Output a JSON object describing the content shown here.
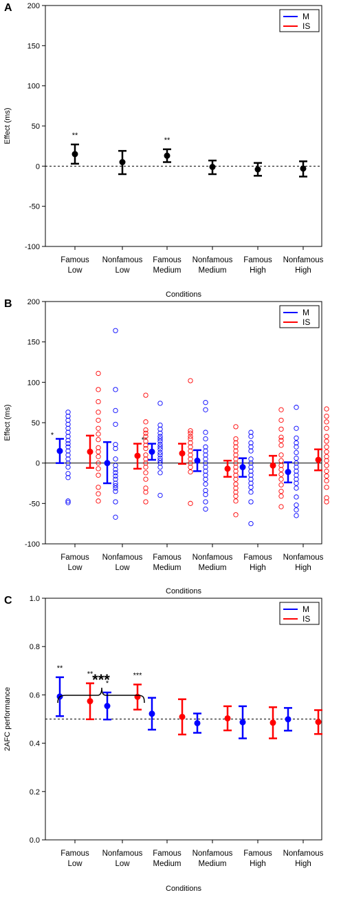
{
  "figure": {
    "chart_data": [
      {
        "panel": "A",
        "type": "scatter",
        "xlabel": "Conditions",
        "ylabel": "Effect (ms)",
        "ylim": [
          -100,
          200
        ],
        "yticks": [
          -100,
          -50,
          0,
          50,
          100,
          150,
          200
        ],
        "categories": [
          "Famous\nLow",
          "Nonfamous\nLow",
          "Famous\nMedium",
          "Nonfamous\nMedium",
          "Famous\nHigh",
          "Nonfamous\nHigh"
        ],
        "reference_line": 0,
        "legend": {
          "placement": "top-right",
          "entries": [
            {
              "label": "M",
              "color": "#0000ff"
            },
            {
              "label": "IS",
              "color": "#ff0000"
            }
          ]
        },
        "series": [
          {
            "color": "#000000",
            "means": [
              15,
              5,
              13,
              -1,
              -4,
              -3
            ],
            "lower": [
              3,
              -10,
              5,
              -10,
              -12,
              -13
            ],
            "upper": [
              27,
              19,
              21,
              7,
              4,
              6
            ],
            "sig": [
              "**",
              "",
              "**",
              "",
              "",
              ""
            ]
          }
        ]
      },
      {
        "panel": "B",
        "type": "scatter",
        "xlabel": "Conditions",
        "ylabel": "Effect (ms)",
        "ylim": [
          -100,
          200
        ],
        "yticks": [
          -100,
          -50,
          0,
          50,
          100,
          150,
          200
        ],
        "categories": [
          "Famous\nLow",
          "Nonfamous\nLow",
          "Famous\nMedium",
          "Nonfamous\nMedium",
          "Famous\nHigh",
          "Nonfamous\nHigh"
        ],
        "reference_line": 0,
        "legend": {
          "placement": "top-right",
          "entries": [
            {
              "label": "M",
              "color": "#0000ff"
            },
            {
              "label": "IS",
              "color": "#ff0000"
            }
          ]
        },
        "series": [
          {
            "name": "M",
            "color": "#0000ff",
            "means": [
              15,
              0,
              14,
              3,
              -5,
              -11
            ],
            "lower": [
              0,
              -25,
              4,
              -10,
              -17,
              -24
            ],
            "upper": [
              30,
              26,
              24,
              16,
              6,
              1
            ],
            "sig": [
              "*",
              "",
              "**",
              "",
              "",
              ""
            ],
            "points": [
              [
                63,
                58,
                53,
                48,
                43,
                38,
                33,
                28,
                24,
                20,
                15,
                10,
                5,
                0,
                -5,
                -13,
                -18,
                -47,
                -49
              ],
              [
                164,
                91,
                65,
                48,
                23,
                18,
                5,
                -3,
                -8,
                -12,
                -16,
                -20,
                -25,
                -28,
                -31,
                -35,
                -48,
                -67
              ],
              [
                74,
                47,
                42,
                37,
                33,
                30,
                27,
                23,
                20,
                17,
                13,
                10,
                6,
                3,
                0,
                -5,
                -12,
                -40
              ],
              [
                75,
                66,
                38,
                30,
                20,
                15,
                10,
                5,
                0,
                -5,
                -10,
                -15,
                -20,
                -26,
                -34,
                -39,
                -48,
                -57
              ],
              [
                38,
                33,
                25,
                20,
                15,
                5,
                0,
                -5,
                -10,
                -15,
                -20,
                -25,
                -30,
                -36,
                -48,
                -75
              ],
              [
                69,
                43,
                31,
                25,
                20,
                13,
                6,
                0,
                -5,
                -10,
                -15,
                -20,
                -25,
                -31,
                -42,
                -52,
                -58,
                -65
              ]
            ]
          },
          {
            "name": "IS",
            "color": "#ff0000",
            "means": [
              14,
              9,
              12,
              -7,
              -3,
              4
            ],
            "lower": [
              -6,
              -7,
              -1,
              -17,
              -15,
              -9
            ],
            "upper": [
              34,
              24,
              24,
              3,
              9,
              17
            ],
            "sig": [
              "",
              "",
              "",
              "",
              "",
              ""
            ],
            "points": [
              [
                111,
                91,
                76,
                63,
                53,
                43,
                36,
                29,
                19,
                14,
                8,
                0,
                -7,
                -15,
                -30,
                -38,
                -47
              ],
              [
                84,
                51,
                41,
                37,
                33,
                27,
                22,
                18,
                10,
                5,
                0,
                -5,
                -12,
                -20,
                -31,
                -36,
                -48
              ],
              [
                102,
                40,
                37,
                33,
                30,
                25,
                20,
                15,
                10,
                5,
                0,
                -5,
                -11,
                -50
              ],
              [
                45,
                30,
                25,
                20,
                15,
                10,
                5,
                0,
                -5,
                -10,
                -15,
                -20,
                -26,
                -31,
                -36,
                -41,
                -47,
                -64
              ],
              [
                66,
                53,
                42,
                32,
                28,
                22,
                10,
                3,
                -3,
                -8,
                -14,
                -20,
                -27,
                -35,
                -41,
                -54
              ],
              [
                67,
                58,
                51,
                43,
                33,
                27,
                20,
                14,
                8,
                3,
                -3,
                -10,
                -16,
                -22,
                -30,
                -43,
                -48
              ]
            ]
          }
        ]
      },
      {
        "panel": "C",
        "type": "scatter",
        "xlabel": "Conditions",
        "ylabel": "2AFC performance",
        "ylim": [
          0.0,
          1.0
        ],
        "yticks": [
          0.0,
          0.2,
          0.4,
          0.6,
          0.8,
          1.0
        ],
        "categories": [
          "Famous\nLow",
          "Nonfamous\nLow",
          "Famous\nMedium",
          "Nonfamous\nMedium",
          "Famous\nHigh",
          "Nonfamous\nHigh"
        ],
        "reference_line": 0.5,
        "legend": {
          "placement": "top-right",
          "entries": [
            {
              "label": "M",
              "color": "#0000ff"
            },
            {
              "label": "IS",
              "color": "#ff0000"
            }
          ]
        },
        "bracket_label": "***",
        "series": [
          {
            "name": "M",
            "color": "#0000ff",
            "means": [
              0.593,
              0.554,
              0.522,
              0.483,
              0.487,
              0.499
            ],
            "lower": [
              0.512,
              0.498,
              0.456,
              0.443,
              0.42,
              0.452
            ],
            "upper": [
              0.673,
              0.61,
              0.588,
              0.523,
              0.553,
              0.546
            ],
            "sig": [
              "**",
              "*",
              "",
              "",
              "",
              ""
            ]
          },
          {
            "name": "IS",
            "color": "#ff0000",
            "means": [
              0.574,
              0.592,
              0.509,
              0.503,
              0.485,
              0.488
            ],
            "lower": [
              0.499,
              0.539,
              0.436,
              0.453,
              0.42,
              0.438
            ],
            "upper": [
              0.648,
              0.643,
              0.582,
              0.553,
              0.549,
              0.537
            ],
            "sig": [
              "**",
              "***",
              "",
              "",
              "",
              ""
            ]
          }
        ]
      }
    ]
  }
}
